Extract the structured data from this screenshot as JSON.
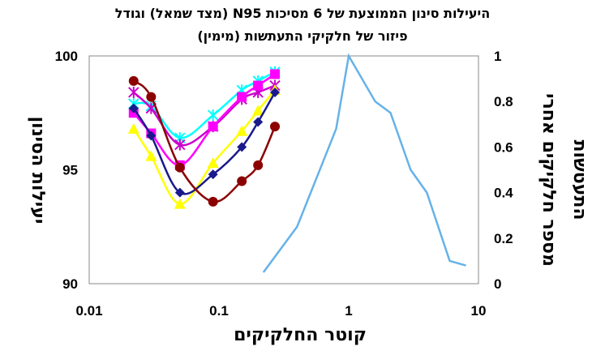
{
  "chart_data": {
    "type": "line",
    "title_line1": "היעילות סינון הממוצעת של 6 מסיכות N95 (מצד שמאל) וגודל",
    "title_line2": "פיזור של חלקיקי התעתשות (מימין)",
    "xlabel": "קוטר החלקיקים",
    "ylabel_left": "יעילות הסינון",
    "ylabel_right_line1": "מספר חלקיקים אחרי",
    "ylabel_right_line2": "התעטשות",
    "x_scale": "log",
    "xlim": [
      0.01,
      10
    ],
    "x_ticks": [
      0.01,
      0.1,
      1,
      10
    ],
    "x_tick_labels": [
      "0.01",
      "0.1",
      "1",
      "10"
    ],
    "ylim_left": [
      90,
      100
    ],
    "y_left_ticks": [
      90,
      95,
      100
    ],
    "y_left_tick_labels": [
      "90",
      "95",
      "100"
    ],
    "ylim_right": [
      0,
      1
    ],
    "y_right_ticks": [
      0,
      0.2,
      0.4,
      0.6,
      0.8,
      1
    ],
    "y_right_tick_labels": [
      "0",
      "0.2",
      "0.4",
      "0.6",
      "0.8",
      "1"
    ],
    "grid": false,
    "legend": "none",
    "series": [
      {
        "axis": "left",
        "color": "#00ffff",
        "marker": "x",
        "x": [
          0.022,
          0.03,
          0.05,
          0.09,
          0.15,
          0.2,
          0.27
        ],
        "y": [
          97.9,
          97.8,
          96.4,
          97.4,
          98.5,
          98.9,
          99.3
        ]
      },
      {
        "axis": "left",
        "color": "#cc00cc",
        "marker": "x",
        "x": [
          0.022,
          0.03,
          0.05,
          0.09,
          0.15,
          0.2,
          0.27
        ],
        "y": [
          98.4,
          97.7,
          96.1,
          96.9,
          98.1,
          98.4,
          98.7
        ]
      },
      {
        "axis": "left",
        "color": "#ff00ff",
        "marker": "square",
        "x": [
          0.022,
          0.03,
          0.05,
          0.09,
          0.15,
          0.2,
          0.27
        ],
        "y": [
          97.5,
          96.6,
          95.2,
          96.9,
          98.2,
          98.7,
          99.2
        ]
      },
      {
        "axis": "left",
        "color": "#ffff00",
        "marker": "triangle",
        "x": [
          0.022,
          0.03,
          0.05,
          0.09,
          0.15,
          0.2,
          0.27
        ],
        "y": [
          96.8,
          95.6,
          93.5,
          95.3,
          96.7,
          97.6,
          98.5
        ]
      },
      {
        "axis": "left",
        "color": "#1a1a8c",
        "marker": "diamond",
        "x": [
          0.022,
          0.03,
          0.05,
          0.09,
          0.15,
          0.2,
          0.27
        ],
        "y": [
          97.7,
          96.5,
          94.0,
          94.8,
          96.0,
          97.1,
          98.4
        ]
      },
      {
        "axis": "left",
        "color": "#8b0000",
        "marker": "circle",
        "x": [
          0.022,
          0.03,
          0.05,
          0.09,
          0.15,
          0.2,
          0.27
        ],
        "y": [
          98.9,
          98.2,
          95.1,
          93.6,
          94.5,
          95.2,
          96.9
        ]
      },
      {
        "axis": "right",
        "color": "#66b2e8",
        "marker": "none",
        "x": [
          0.22,
          0.4,
          0.8,
          1.0,
          1.6,
          2.1,
          3.0,
          4.0,
          6.0,
          8.0
        ],
        "y": [
          0.05,
          0.25,
          0.68,
          1.0,
          0.8,
          0.75,
          0.5,
          0.4,
          0.1,
          0.08
        ]
      }
    ]
  }
}
